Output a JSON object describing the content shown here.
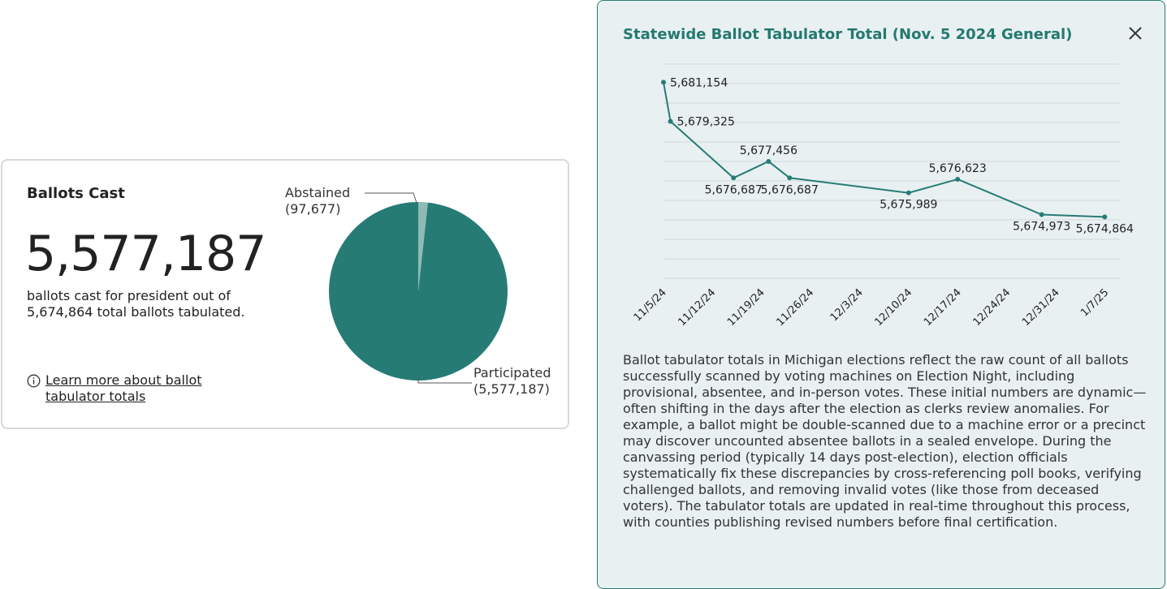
{
  "card": {
    "title": "Ballots Cast",
    "big_number": "5,577,187",
    "description": "ballots cast for president out of 5,674,864 total ballots tabulated.",
    "learn_more": "Learn more about ballot tabulator totals",
    "pie": {
      "type": "pie",
      "slices": [
        {
          "name": "Abstained",
          "label_line1": "Abstained",
          "label_line2": "(97,677)",
          "value": 97677,
          "color": "#8fbab5"
        },
        {
          "name": "Participated",
          "label_line1": "Participated",
          "label_line2": "(5,577,187)",
          "value": 5577187,
          "color": "#267c75"
        }
      ]
    }
  },
  "panel": {
    "title": "Statewide Ballot Tabulator Total (Nov. 5 2024 General)",
    "close_icon": "close-icon",
    "description": "Ballot tabulator totals in Michigan elections reflect the raw count of all ballots successfully scanned by voting machines on Election Night, including provisional, absentee, and in-person votes. These initial numbers are dynamic—often shifting in the days after the election as clerks review anomalies. For example, a ballot might be double-scanned due to a machine error or a precinct may discover uncounted absentee ballots in a sealed envelope. During the canvassing period (typically 14 days post-election), election officials systematically fix these discrepancies by cross-referencing poll books, verifying challenged ballots, and removing invalid votes (like those from deceased voters). The tabulator totals are updated in real-time throughout this process, with counties publishing revised numbers before final certification."
  },
  "chart_data": {
    "type": "line",
    "x": [
      "2024-11-05",
      "2024-11-06",
      "2024-11-15",
      "2024-11-20",
      "2024-11-23",
      "2024-12-10",
      "2024-12-17",
      "2024-12-29",
      "2025-01-07"
    ],
    "x_tick_labels": [
      "11/5/24",
      "11/12/24",
      "11/19/24",
      "11/26/24",
      "12/3/24",
      "12/10/24",
      "12/17/24",
      "12/24/24",
      "12/31/24",
      "1/7/25"
    ],
    "values": [
      5681154,
      5679325,
      5676687,
      5677456,
      5676687,
      5675989,
      5676623,
      5674973,
      5674864
    ],
    "point_labels": [
      "5,681,154",
      "5,679,325",
      "5,676,687",
      "5,677,456",
      "5,676,687",
      "5,675,989",
      "5,676,623",
      "5,674,973",
      "5,674,864"
    ],
    "label_side": [
      "right",
      "right",
      "below",
      "above",
      "below",
      "below",
      "above",
      "below",
      "below"
    ],
    "ylim": [
      5672000,
      5682000
    ],
    "grid": true,
    "line_color": "#267c75",
    "title": "",
    "xlabel": "",
    "ylabel": ""
  }
}
